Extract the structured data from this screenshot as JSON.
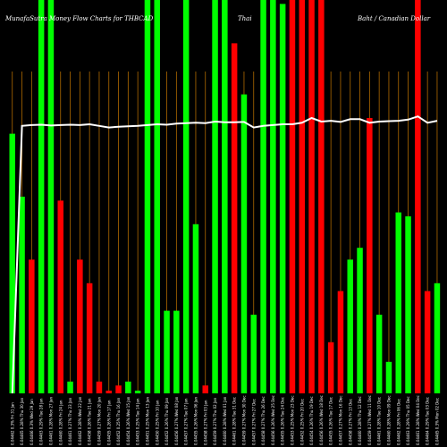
{
  "chart_data": {
    "type": "bar",
    "title_left": "MunafaSutra  Money Flow  Charts for THBCAD",
    "title_mid": "Thai",
    "title_right": "Baht / Canadian  Dollar",
    "ylim": [
      0,
      100
    ],
    "grid": "vertical",
    "colors": {
      "up": "#00ff00",
      "down": "#ff0000",
      "line": "#ffffff",
      "grid": "#b06a00",
      "background": "#000000"
    },
    "categories": [
      "Fri 31 Jan",
      "Thu 30 Jan",
      "Wed 29 Jan",
      "Tue 28 Jan",
      "Mon 27 Jan",
      "Fri 24 Jan",
      "Thu 23 Jan",
      "Wed 22 Jan",
      "Tue 21 Jan",
      "Mon 20 Jan",
      "Fri 17 Jan",
      "Thu 16 Jan",
      "Wed 15 Jan",
      "Tue 14 Jan",
      "Mon 13 Jan",
      "Fri 10 Jan",
      "Thu 09 Jan",
      "Wed 08 Jan",
      "Tue 07 Jan",
      "Mon 06 Jan",
      "Fri 03 Jan",
      "Thu 02 Jan",
      "Wed 01 Jan",
      "Tue 31 Dec",
      "Mon 30 Dec",
      "Fri 27 Dec",
      "Thu 26 Dec",
      "Wed 25 Dec",
      "Tue 24 Dec",
      "Mon 23 Dec",
      "Fri 20 Dec",
      "Thu 19 Dec",
      "Wed 18 Dec",
      "Tue 17 Dec",
      "Mon 16 Dec",
      "Fri 13 Dec",
      "Thu 12 Dec",
      "Wed 11 Dec",
      "Tue 10 Dec",
      "Mon 09 Dec",
      "Fri 06 Dec",
      "Thu 05 Dec",
      "Wed 04 Dec",
      "Tue 03 Dec",
      "Mon 02 Dec"
    ],
    "tick_labels": [
      "0.04462 0.3%",
      "0.04465 0.28%",
      "0.04466 0.3%",
      "0.04463 0.29%",
      "0.04461 0.28%",
      "0.04460 0.28%",
      "0.04461 0.27%",
      "0.04462 0.28%",
      "0.04458 0.26%",
      "0.04459 0.27%",
      "0.04455 0.26%",
      "0.04452 0.25%",
      "0.04454 0.26%",
      "0.04453 0.25%",
      "0.04451 0.25%",
      "0.04450 0.25%",
      "0.04452 0.26%",
      "0.04456 0.27%",
      "0.04457 0.27%",
      "0.04455 0.26%",
      "0.04458 0.27%",
      "0.04459 0.27%",
      "0.04460 0.28%",
      "0.04461 0.28%",
      "0.04459 0.27%",
      "0.04457 0.27%",
      "0.04458 0.27%",
      "0.04456 0.26%",
      "0.04455 0.26%",
      "0.04453 0.25%",
      "0.04452 0.25%",
      "0.04454 0.26%",
      "0.04456 0.26%",
      "0.04455 0.26%",
      "0.04457 0.27%",
      "0.04458 0.27%",
      "0.04460 0.28%",
      "0.04459 0.27%",
      "0.04461 0.28%",
      "0.04460 0.28%",
      "0.04462 0.28%",
      "0.04463 0.29%",
      "0.04461 0.28%",
      "0.04464 0.29%",
      "0.04465 0.3%"
    ],
    "bars": [
      {
        "value": 66,
        "dir": "up"
      },
      {
        "value": 50,
        "dir": "up"
      },
      {
        "value": 34,
        "dir": "down"
      },
      {
        "value": 100,
        "dir": "up"
      },
      {
        "value": 100,
        "dir": "up"
      },
      {
        "value": 49,
        "dir": "down"
      },
      {
        "value": 3,
        "dir": "up"
      },
      {
        "value": 34,
        "dir": "down"
      },
      {
        "value": 28,
        "dir": "down"
      },
      {
        "value": 3,
        "dir": "down"
      },
      {
        "value": 0.7,
        "dir": "down"
      },
      {
        "value": 2,
        "dir": "down"
      },
      {
        "value": 3,
        "dir": "up"
      },
      {
        "value": 0.7,
        "dir": "up"
      },
      {
        "value": 100,
        "dir": "up"
      },
      {
        "value": 100,
        "dir": "up"
      },
      {
        "value": 21,
        "dir": "up"
      },
      {
        "value": 21,
        "dir": "up"
      },
      {
        "value": 100,
        "dir": "up"
      },
      {
        "value": 43,
        "dir": "up"
      },
      {
        "value": 2,
        "dir": "down"
      },
      {
        "value": 100,
        "dir": "up"
      },
      {
        "value": 100,
        "dir": "up"
      },
      {
        "value": 89,
        "dir": "down"
      },
      {
        "value": 76,
        "dir": "up"
      },
      {
        "value": 20,
        "dir": "up"
      },
      {
        "value": 100,
        "dir": "up"
      },
      {
        "value": 100,
        "dir": "up"
      },
      {
        "value": 99,
        "dir": "up"
      },
      {
        "value": 100,
        "dir": "down"
      },
      {
        "value": 100,
        "dir": "down"
      },
      {
        "value": 100,
        "dir": "down"
      },
      {
        "value": 100,
        "dir": "down"
      },
      {
        "value": 13,
        "dir": "down"
      },
      {
        "value": 26,
        "dir": "down"
      },
      {
        "value": 34,
        "dir": "up"
      },
      {
        "value": 37,
        "dir": "up"
      },
      {
        "value": 70,
        "dir": "down"
      },
      {
        "value": 20,
        "dir": "up"
      },
      {
        "value": 8,
        "dir": "up"
      },
      {
        "value": 46,
        "dir": "up"
      },
      {
        "value": 45,
        "dir": "up"
      },
      {
        "value": 100,
        "dir": "down"
      },
      {
        "value": 26,
        "dir": "down"
      },
      {
        "value": 28,
        "dir": "up"
      }
    ],
    "line": [
      0.0,
      68.0,
      68.2,
      68.3,
      68.1,
      68.2,
      68.3,
      68.2,
      68.4,
      68.0,
      67.6,
      67.8,
      67.9,
      68.0,
      68.2,
      68.4,
      68.3,
      68.6,
      68.7,
      68.8,
      68.7,
      69.1,
      68.9,
      68.9,
      69.0,
      67.6,
      68.0,
      68.2,
      68.4,
      68.4,
      68.8,
      70.0,
      69.1,
      69.3,
      69.0,
      69.7,
      69.7,
      68.8,
      69.1,
      69.2,
      69.3,
      69.6,
      70.4,
      68.8,
      69.3
    ]
  }
}
